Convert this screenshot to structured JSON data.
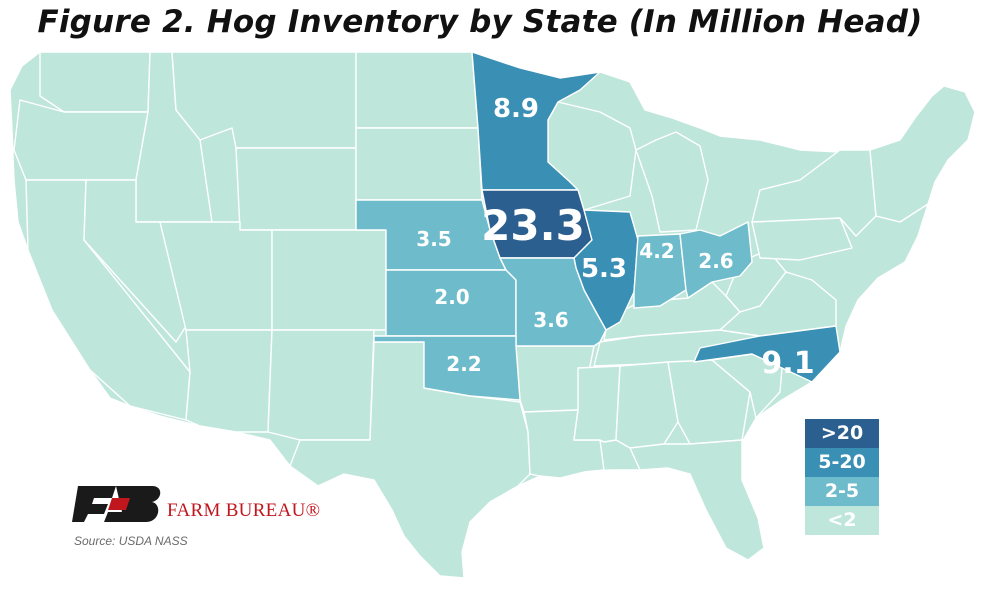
{
  "title": "Figure 2. Hog Inventory by State (In Million Head)",
  "colors": {
    "lt2": "#bfe6da",
    "2to5": "#6ebccb",
    "5to20": "#3a8fb5",
    "gt20": "#2b5f8f",
    "border": "#ffffff"
  },
  "states": [
    {
      "name": "Iowa",
      "value": "23.3",
      "bucket": "gt20"
    },
    {
      "name": "Minnesota",
      "value": "8.9",
      "bucket": "5to20"
    },
    {
      "name": "North Carolina",
      "value": "9.1",
      "bucket": "5to20"
    },
    {
      "name": "Illinois",
      "value": "5.3",
      "bucket": "5to20"
    },
    {
      "name": "Indiana",
      "value": "4.2",
      "bucket": "2to5"
    },
    {
      "name": "Nebraska",
      "value": "3.5",
      "bucket": "2to5"
    },
    {
      "name": "Missouri",
      "value": "3.6",
      "bucket": "2to5"
    },
    {
      "name": "Ohio",
      "value": "2.6",
      "bucket": "2to5"
    },
    {
      "name": "Oklahoma",
      "value": "2.2",
      "bucket": "2to5"
    },
    {
      "name": "Kansas",
      "value": "2.0",
      "bucket": "2to5"
    }
  ],
  "legend": [
    {
      "label": ">20",
      "color": "#2b5f8f"
    },
    {
      "label": "5-20",
      "color": "#3a8fb5"
    },
    {
      "label": "2-5",
      "color": "#6ebccb"
    },
    {
      "label": "<2",
      "color": "#bfe6da"
    }
  ],
  "logo_text": "FARM BUREAU®",
  "source": "Source: USDA NASS"
}
